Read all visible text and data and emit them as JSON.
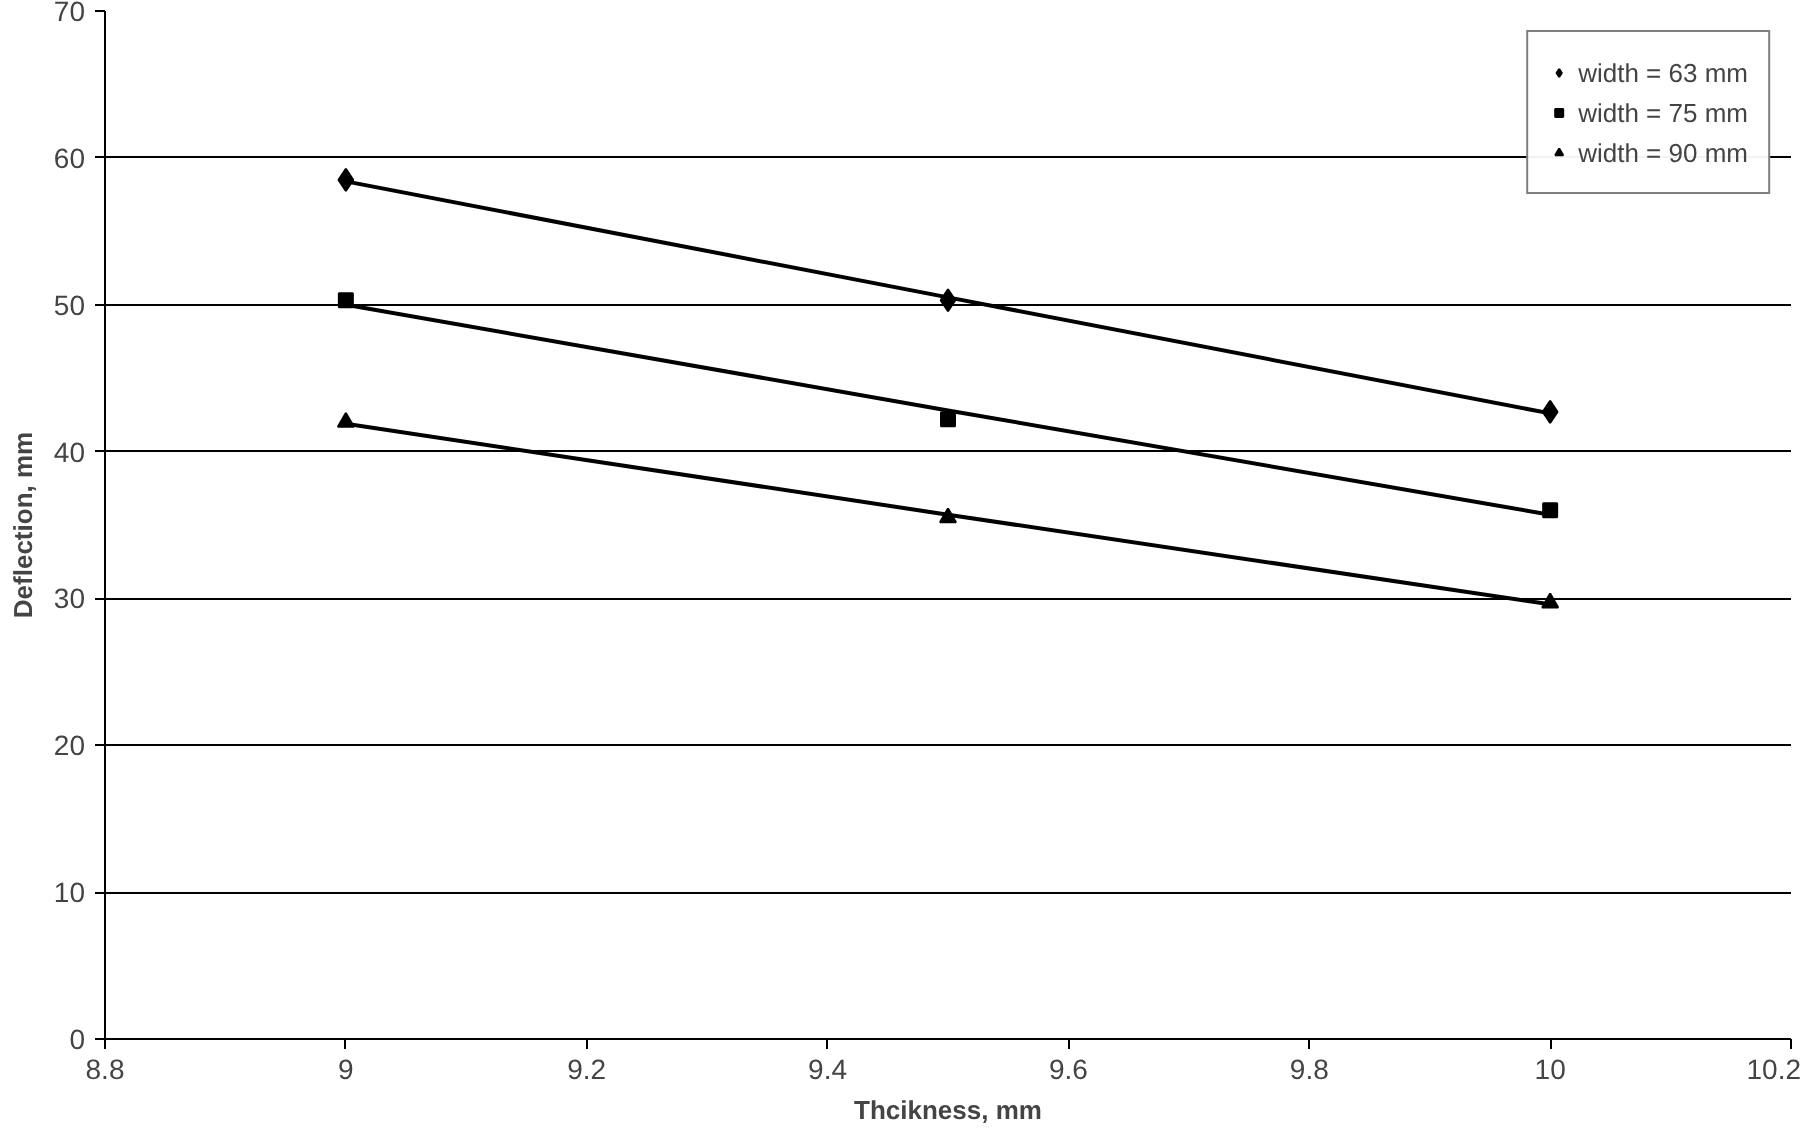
{
  "chart_data": {
    "type": "scatter",
    "xlabel": "Thcikness, mm",
    "ylabel": "Deflection, mm",
    "x": [
      9,
      9.5,
      10
    ],
    "series": [
      {
        "name": "width = 63 mm",
        "color": "#000000",
        "marker": "diamond",
        "values": [
          58.5,
          50.3,
          42.7
        ]
      },
      {
        "name": "width = 75 mm",
        "color": "#000000",
        "marker": "square",
        "values": [
          50.3,
          42.2,
          36
        ]
      },
      {
        "name": "width = 90 mm",
        "color": "#000000",
        "marker": "triangle",
        "values": [
          42,
          35.5,
          29.7
        ]
      },
      {
        "type": "line",
        "color": "#000000",
        "values": [
          58.4,
          50.5,
          42.6
        ]
      },
      {
        "type": "line",
        "color": "#000000",
        "values": [
          50,
          42.8,
          35.7
        ]
      },
      {
        "type": "line",
        "color": "#000000",
        "values": [
          41.9,
          35.7,
          29.6
        ]
      }
    ],
    "xlim": [
      8.8,
      10.2
    ],
    "xticks": [
      8.8,
      9,
      9.2,
      9.4,
      9.6,
      9.8,
      10,
      10.2
    ],
    "ylim": [
      0,
      70
    ],
    "yticks": [
      0,
      10,
      20,
      30,
      40,
      50,
      60,
      70
    ],
    "grid": "y",
    "legend": "top right",
    "line_style": "solid"
  }
}
